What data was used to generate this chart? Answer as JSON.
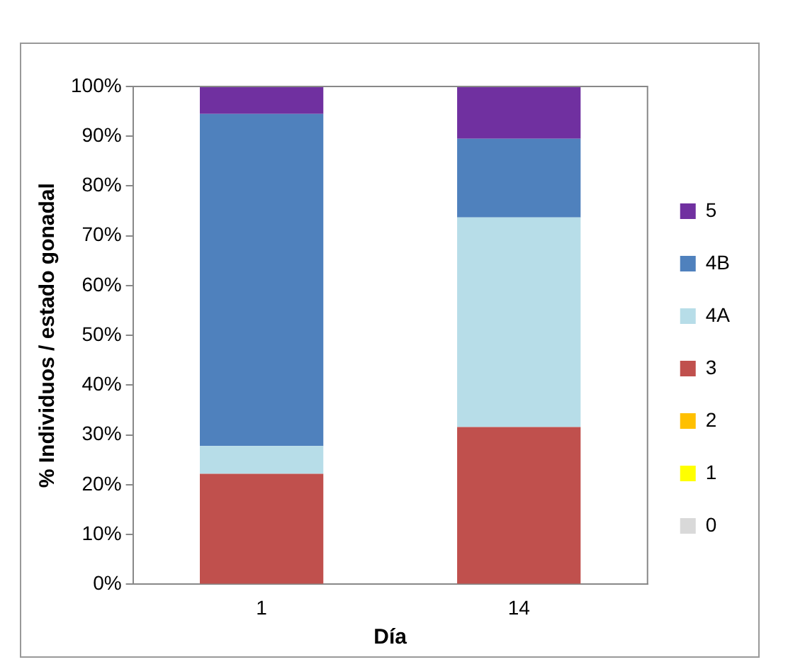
{
  "chart_data": {
    "type": "bar",
    "stacked": true,
    "xlabel": "Día",
    "ylabel": "% Individuos / estado gonadal",
    "categories": [
      "1",
      "14"
    ],
    "series": [
      {
        "name": "0",
        "color": "#d9d9d9",
        "values": [
          0,
          0
        ]
      },
      {
        "name": "1",
        "color": "#ffff00",
        "values": [
          0,
          0
        ]
      },
      {
        "name": "2",
        "color": "#ffc000",
        "values": [
          0,
          0
        ]
      },
      {
        "name": "3",
        "color": "#c0504d",
        "values": [
          22.2,
          31.6
        ]
      },
      {
        "name": "4A",
        "color": "#b7dde8",
        "values": [
          5.6,
          42.1
        ]
      },
      {
        "name": "4B",
        "color": "#4f81bd",
        "values": [
          66.7,
          15.8
        ]
      },
      {
        "name": "5",
        "color": "#7030a0",
        "values": [
          5.5,
          10.5
        ]
      }
    ],
    "ylim": [
      0,
      100
    ],
    "yticks": [
      {
        "value": 0,
        "label": "0%"
      },
      {
        "value": 10,
        "label": "10%"
      },
      {
        "value": 20,
        "label": "20%"
      },
      {
        "value": 30,
        "label": "30%"
      },
      {
        "value": 40,
        "label": "40%"
      },
      {
        "value": 50,
        "label": "50%"
      },
      {
        "value": 60,
        "label": "60%"
      },
      {
        "value": 70,
        "label": "70%"
      },
      {
        "value": 80,
        "label": "80%"
      },
      {
        "value": 90,
        "label": "90%"
      },
      {
        "value": 100,
        "label": "100%"
      }
    ],
    "grid": false,
    "legend": "right"
  }
}
